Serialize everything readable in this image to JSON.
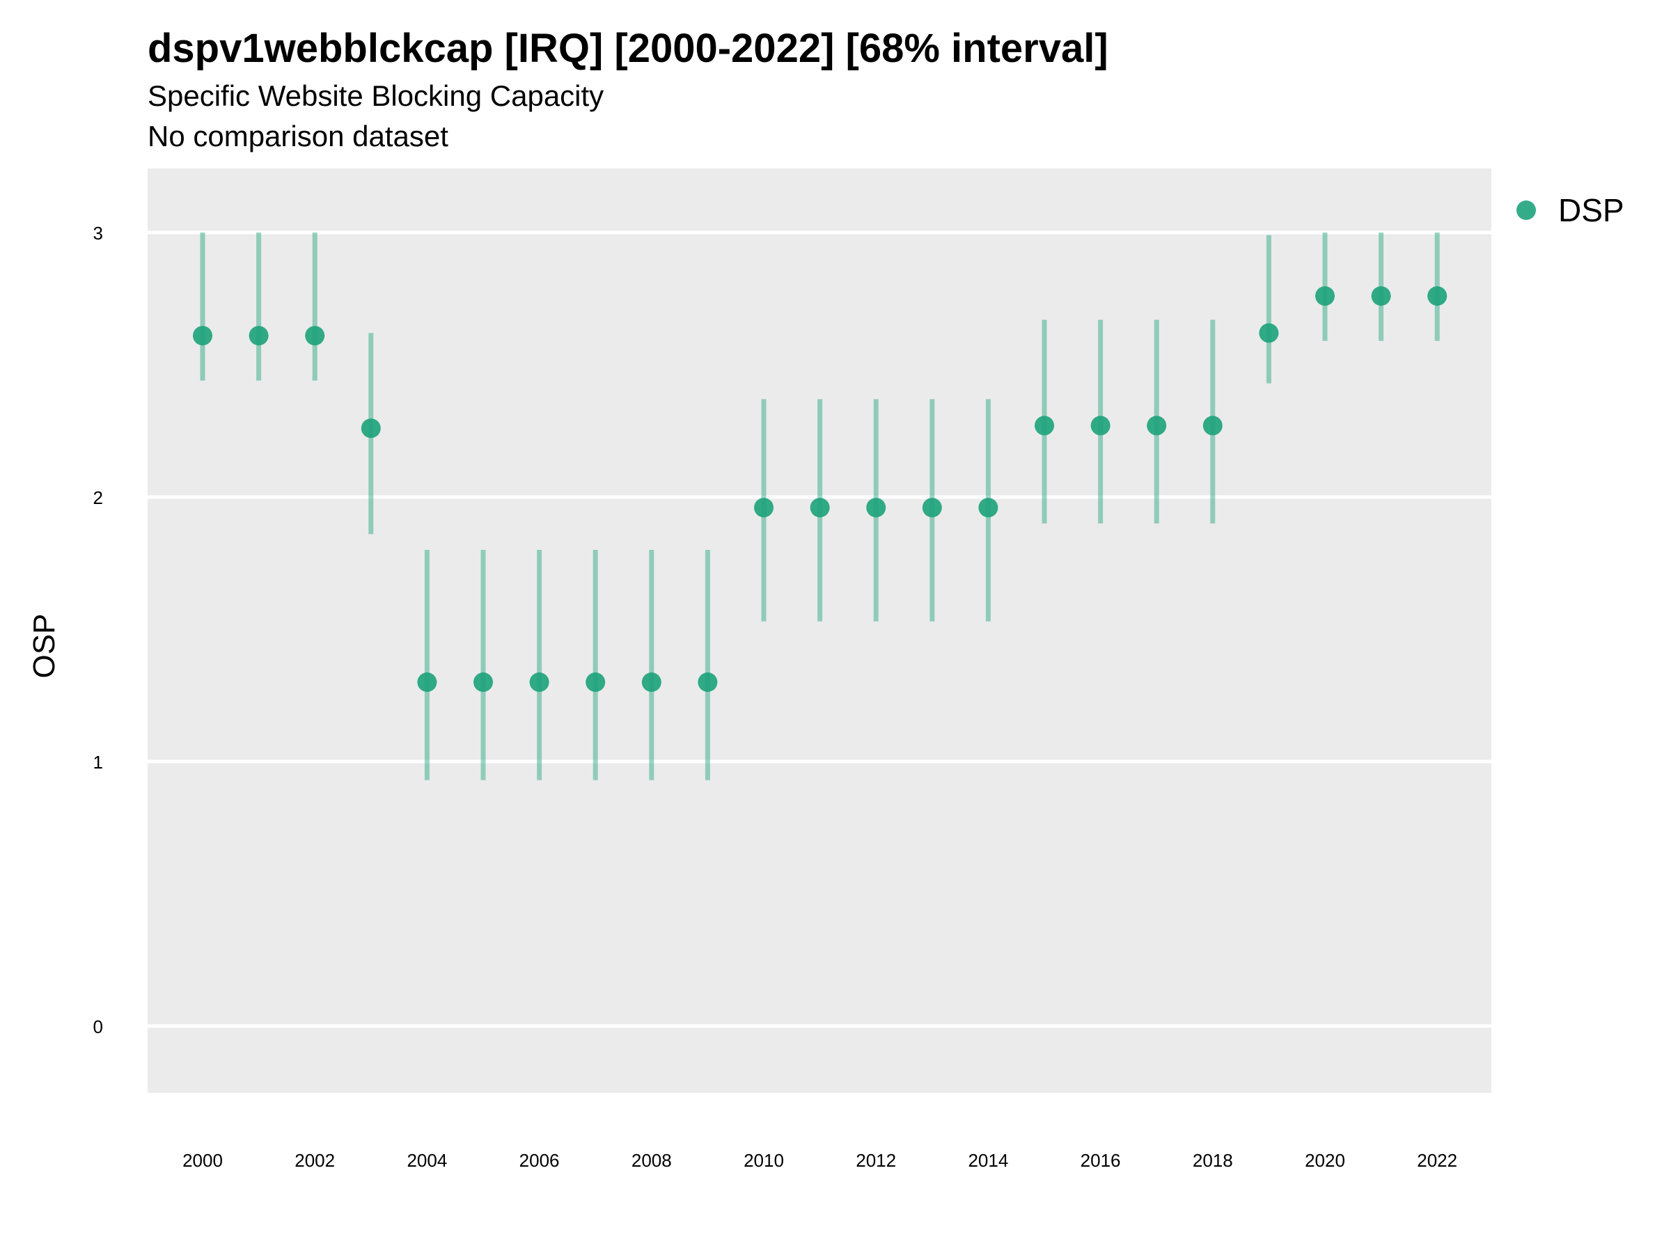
{
  "title": "dspv1webblckcap [IRQ] [2000-2022] [68% interval]",
  "subtitle": "Specific Website Blocking Capacity",
  "caption": "No comparison dataset",
  "chart_data": {
    "type": "scatter",
    "ylabel": "OSP",
    "xlabel": "",
    "ylim": [
      -0.25,
      3.25
    ],
    "yticks": [
      0,
      1,
      2,
      3
    ],
    "xticks": [
      2000,
      2002,
      2004,
      2006,
      2008,
      2010,
      2012,
      2014,
      2016,
      2018,
      2020,
      2022
    ],
    "grid": true,
    "legend_position": "right",
    "series": [
      {
        "name": "DSP",
        "color": "#1fa37c",
        "x": [
          2000,
          2001,
          2002,
          2003,
          2004,
          2005,
          2006,
          2007,
          2008,
          2009,
          2010,
          2011,
          2012,
          2013,
          2014,
          2015,
          2016,
          2017,
          2018,
          2019,
          2020,
          2021,
          2022
        ],
        "y": [
          2.61,
          2.61,
          2.61,
          2.26,
          1.3,
          1.3,
          1.3,
          1.3,
          1.3,
          1.3,
          1.96,
          1.96,
          1.96,
          1.96,
          1.96,
          2.27,
          2.27,
          2.27,
          2.27,
          2.62,
          2.76,
          2.76,
          2.76
        ],
        "lower": [
          2.44,
          2.44,
          2.44,
          1.86,
          0.93,
          0.93,
          0.93,
          0.93,
          0.93,
          0.93,
          1.53,
          1.53,
          1.53,
          1.53,
          1.53,
          1.9,
          1.9,
          1.9,
          1.9,
          2.43,
          2.59,
          2.59,
          2.59
        ],
        "upper": [
          3.0,
          3.0,
          3.0,
          2.62,
          1.8,
          1.8,
          1.8,
          1.8,
          1.8,
          1.8,
          2.37,
          2.37,
          2.37,
          2.37,
          2.37,
          2.67,
          2.67,
          2.67,
          2.67,
          2.99,
          3.0,
          3.0,
          3.0
        ]
      }
    ]
  }
}
